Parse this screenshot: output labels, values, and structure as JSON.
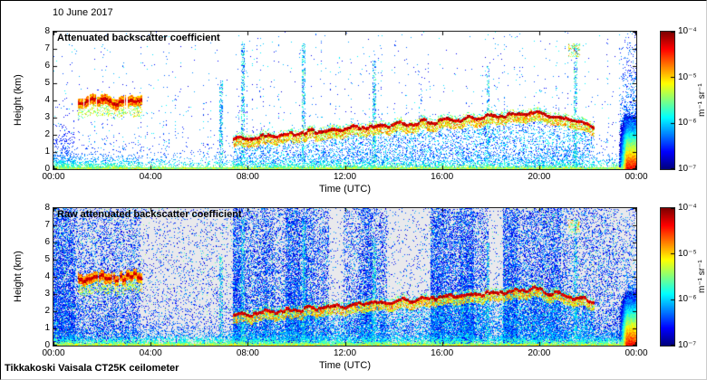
{
  "page": {
    "date_label": "10 June 2017",
    "footer_label": "Tikkakoski Vaisala CT25K ceilometer"
  },
  "chart_data": [
    {
      "type": "heatmap",
      "title": "Attenuated backscatter coefficient",
      "xlabel": "Time (UTC)",
      "ylabel": "Height (km)",
      "x_range_hours": [
        0,
        24
      ],
      "x_tick_hours": [
        0,
        4,
        8,
        12,
        16,
        20,
        24
      ],
      "x_tick_labels": [
        "00:00",
        "04:00",
        "08:00",
        "12:00",
        "16:00",
        "20:00",
        "00:00"
      ],
      "y_range_km": [
        0,
        8
      ],
      "y_tick_km": [
        0,
        1,
        2,
        3,
        4,
        5,
        6,
        7,
        8
      ],
      "background": "#ffffff",
      "colorbar": {
        "labels": [
          "10⁻⁴",
          "10⁻⁵",
          "10⁻⁶",
          "10⁻⁷"
        ],
        "unit": "m⁻¹ sr⁻¹",
        "colormap": "jet",
        "value_range_log10": [
          -7,
          -4
        ]
      },
      "features": {
        "raw_noise": false,
        "morning_cloud": {
          "t_start": 1.0,
          "t_end": 3.65,
          "height_km": 3.95
        },
        "rising_aerosol_layer": {
          "t_start": 7.4,
          "t_end": 22.3,
          "t_peak": 19.8,
          "h_start_km": 1.75,
          "h_peak_km": 3.3
        },
        "boundary_layer_depth_km": 1.2,
        "evening_plume": {
          "t_start": 23.25,
          "t_end": 24,
          "h_top_km": 3.5
        },
        "high_clouds": [
          {
            "t": 21.45,
            "h_top_km": 7.3
          }
        ],
        "noise_streaks": [
          {
            "t": 6.9,
            "top_km": 5.2
          },
          {
            "t": 7.8,
            "top_km": 7.4
          },
          {
            "t": 10.3,
            "top_km": 7.3
          },
          {
            "t": 13.2,
            "top_km": 6.3
          },
          {
            "t": 17.9,
            "top_km": 6.0
          },
          {
            "t": 21.5,
            "top_km": 7.3
          }
        ]
      }
    },
    {
      "type": "heatmap",
      "title": "Raw attenuated backscatter coefficient",
      "xlabel": "Time (UTC)",
      "ylabel": "Height (km)",
      "x_range_hours": [
        0,
        24
      ],
      "x_tick_hours": [
        0,
        4,
        8,
        12,
        16,
        20,
        24
      ],
      "x_tick_labels": [
        "00:00",
        "04:00",
        "08:00",
        "12:00",
        "16:00",
        "20:00",
        "00:00"
      ],
      "y_range_km": [
        0,
        8
      ],
      "y_tick_km": [
        0,
        1,
        2,
        3,
        4,
        5,
        6,
        7,
        8
      ],
      "background": "#e9e9ec",
      "colorbar": {
        "labels": [
          "10⁻⁴",
          "10⁻⁵",
          "10⁻⁶",
          "10⁻⁷"
        ],
        "unit": "m⁻¹ sr⁻¹",
        "colormap": "jet",
        "value_range_log10": [
          -7,
          -4
        ]
      },
      "features": {
        "raw_noise": true,
        "morning_cloud": {
          "t_start": 1.0,
          "t_end": 3.65,
          "height_km": 3.95
        },
        "rising_aerosol_layer": {
          "t_start": 7.4,
          "t_end": 22.3,
          "t_peak": 19.8,
          "h_start_km": 1.75,
          "h_peak_km": 3.3
        },
        "boundary_layer_depth_km": 1.2,
        "evening_plume": {
          "t_start": 23.25,
          "t_end": 24,
          "h_top_km": 3.5
        },
        "high_clouds": [
          {
            "t": 21.45,
            "h_top_km": 7.3
          }
        ],
        "noise_streaks": [
          {
            "t": 6.9,
            "top_km": 5.2
          },
          {
            "t": 7.8,
            "top_km": 7.4
          },
          {
            "t": 10.3,
            "top_km": 7.3
          },
          {
            "t": 13.2,
            "top_km": 6.3
          },
          {
            "t": 17.9,
            "top_km": 6.0
          },
          {
            "t": 21.5,
            "top_km": 7.3
          }
        ]
      }
    }
  ]
}
